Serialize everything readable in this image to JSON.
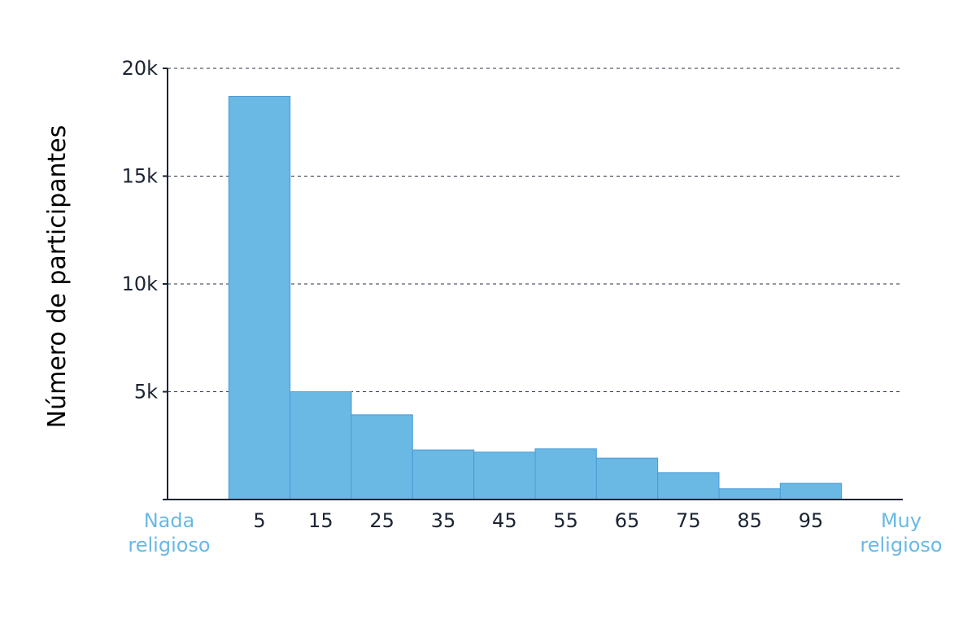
{
  "chart_data": {
    "type": "bar",
    "ylabel": "Número de participantes",
    "xlabel": "",
    "categories": [
      "5",
      "15",
      "25",
      "35",
      "45",
      "55",
      "65",
      "75",
      "85",
      "95"
    ],
    "values": [
      18700,
      5000,
      3930,
      2300,
      2200,
      2350,
      1920,
      1250,
      500,
      750
    ],
    "bin_edges": [
      0,
      10,
      20,
      30,
      40,
      50,
      60,
      70,
      80,
      90,
      100
    ],
    "xlim": [
      -10,
      110
    ],
    "ylim": [
      0,
      20000
    ],
    "yticks": [
      5000,
      10000,
      15000,
      20000
    ],
    "ytick_labels": [
      "5k",
      "10k",
      "15k",
      "20k"
    ],
    "x_end_labels": {
      "left": [
        "Nada",
        "religioso"
      ],
      "right": [
        "Muy",
        "religioso"
      ]
    },
    "grid": "y dashed",
    "colors": {
      "bar": "#6ab8e4",
      "bar_edge": "#4a9bd6",
      "axis": "#1b2433",
      "end_labels": "#6ab8e4"
    }
  }
}
